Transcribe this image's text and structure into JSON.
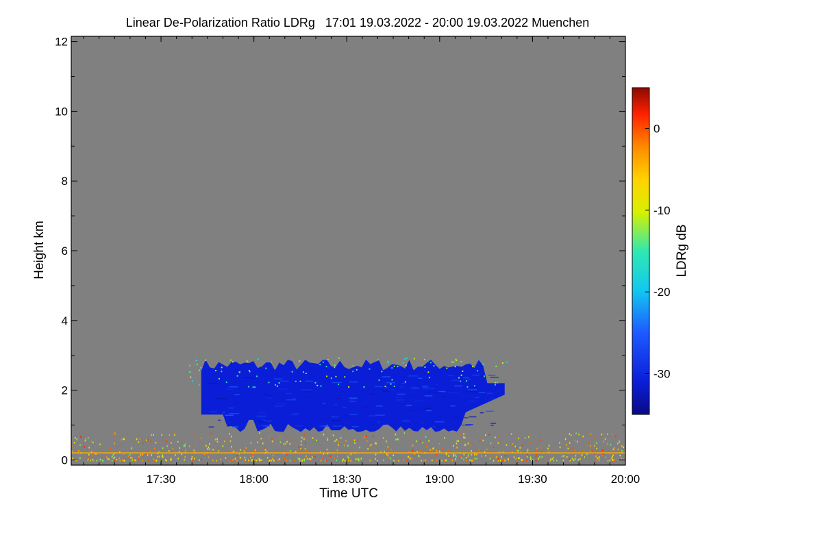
{
  "chart_data": {
    "type": "heatmap",
    "title": "Linear De-Polarization Ratio LDRg   17:01 19.03.2022 - 20:00 19.03.2022 Muenchen",
    "xlabel": "Time UTC",
    "ylabel": "Height km",
    "colorbar_label": "LDRg dB",
    "x_range_min": [
      1021,
      1200
    ],
    "ylim": [
      -0.15,
      12.15
    ],
    "x_ticks": [
      {
        "label": "17:30",
        "value": 1050
      },
      {
        "label": "18:00",
        "value": 1080
      },
      {
        "label": "18:30",
        "value": 1110
      },
      {
        "label": "19:00",
        "value": 1140
      },
      {
        "label": "19:30",
        "value": 1170
      },
      {
        "label": "20:00",
        "value": 1200
      }
    ],
    "y_ticks": [
      {
        "label": "0",
        "value": 0
      },
      {
        "label": "2",
        "value": 2
      },
      {
        "label": "4",
        "value": 4
      },
      {
        "label": "6",
        "value": 6
      },
      {
        "label": "8",
        "value": 8
      },
      {
        "label": "10",
        "value": 10
      },
      {
        "label": "12",
        "value": 12
      }
    ],
    "colorbar_range": [
      -35,
      5
    ],
    "colorbar_ticks": [
      {
        "label": "0",
        "value": 0
      },
      {
        "label": "-10",
        "value": -10
      },
      {
        "label": "-20",
        "value": -20
      },
      {
        "label": "-30",
        "value": -30
      }
    ],
    "background_color": "#808080",
    "regions": [
      {
        "name": "cloud",
        "ldr_dB": -31,
        "t_start": 1063,
        "t_end": 1161,
        "base_km": 0.8,
        "top_km": 2.8
      },
      {
        "name": "cloud-top-fringe",
        "ldr_dB": -18,
        "t_start": 1059,
        "t_end": 1164,
        "base_km": 2.1,
        "top_km": 2.95
      },
      {
        "name": "boundary-layer-noise",
        "ldr_dB": -5,
        "t_start": 1021,
        "t_end": 1200,
        "base_km": 0.0,
        "top_km": 0.8
      }
    ]
  }
}
